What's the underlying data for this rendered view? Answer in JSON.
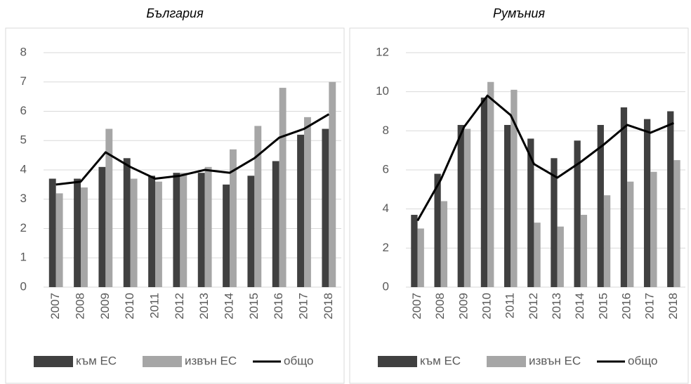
{
  "chart_data": [
    {
      "type": "bar",
      "title": "България",
      "categories": [
        "2007",
        "2008",
        "2009",
        "2010",
        "2011",
        "2012",
        "2013",
        "2014",
        "2015",
        "2016",
        "2017",
        "2018"
      ],
      "series": [
        {
          "name": "към ЕС",
          "color": "#404040",
          "kind": "bar",
          "values": [
            3.7,
            3.7,
            4.1,
            4.4,
            3.8,
            3.9,
            3.9,
            3.5,
            3.8,
            4.3,
            5.2,
            5.4
          ]
        },
        {
          "name": "извън ЕС",
          "color": "#a6a6a6",
          "kind": "bar",
          "values": [
            3.2,
            3.4,
            5.4,
            3.7,
            3.6,
            3.9,
            4.1,
            4.7,
            5.5,
            6.8,
            5.8,
            7.0
          ]
        },
        {
          "name": "общо",
          "color": "#000000",
          "kind": "line",
          "values": [
            3.5,
            3.6,
            4.6,
            4.1,
            3.7,
            3.8,
            4.0,
            3.9,
            4.4,
            5.1,
            5.4,
            5.9
          ]
        }
      ],
      "ylim": [
        0,
        8
      ],
      "yticks": [
        0,
        1,
        2,
        3,
        4,
        5,
        6,
        7,
        8
      ],
      "grid": true,
      "legend": "bottom"
    },
    {
      "type": "bar",
      "title": "Румъния",
      "categories": [
        "2007",
        "2008",
        "2009",
        "2010",
        "2011",
        "2012",
        "2013",
        "2014",
        "2015",
        "2016",
        "2017",
        "2018"
      ],
      "series": [
        {
          "name": "към ЕС",
          "color": "#404040",
          "kind": "bar",
          "values": [
            3.7,
            5.8,
            8.3,
            9.7,
            8.3,
            7.6,
            6.6,
            7.5,
            8.3,
            9.2,
            8.6,
            9.0
          ]
        },
        {
          "name": "извън ЕС",
          "color": "#a6a6a6",
          "kind": "bar",
          "values": [
            3.0,
            4.4,
            8.1,
            10.5,
            10.1,
            3.3,
            3.1,
            3.7,
            4.7,
            5.4,
            5.9,
            6.5
          ]
        },
        {
          "name": "общо",
          "color": "#000000",
          "kind": "line",
          "values": [
            3.4,
            5.5,
            8.2,
            9.8,
            8.8,
            6.3,
            5.6,
            6.4,
            7.3,
            8.3,
            7.9,
            8.4
          ]
        }
      ],
      "ylim": [
        0,
        12
      ],
      "yticks": [
        0,
        2,
        4,
        6,
        8,
        10,
        12
      ],
      "grid": true,
      "legend": "bottom"
    }
  ]
}
